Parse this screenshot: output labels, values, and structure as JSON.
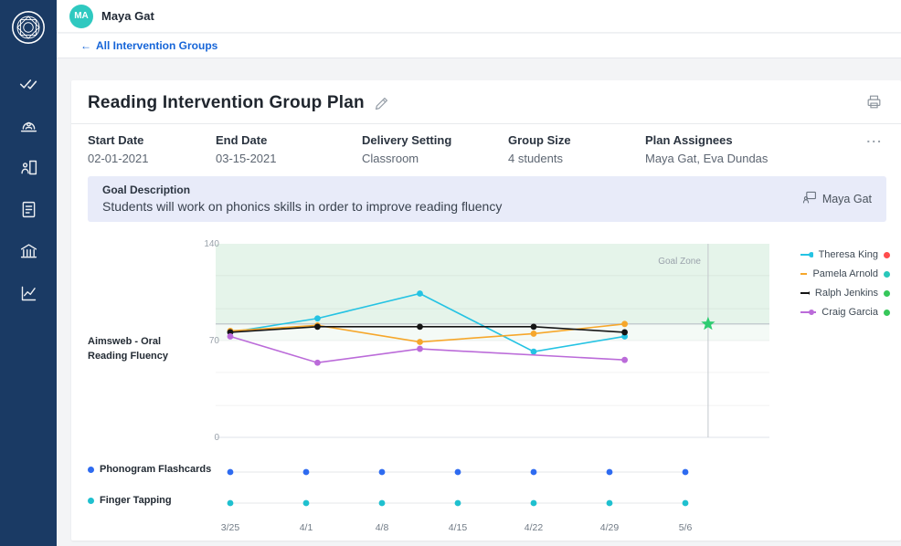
{
  "header": {
    "avatar_initials": "MA",
    "user_name": "Maya Gat",
    "back_arrow": "←",
    "back_label": "All Intervention Groups"
  },
  "plan": {
    "title": "Reading Intervention Group Plan",
    "overflow_label": "...",
    "fields": [
      {
        "label": "Start Date",
        "value": "02-01-2021"
      },
      {
        "label": "End Date",
        "value": "03-15-2021"
      },
      {
        "label": "Delivery Setting",
        "value": "Classroom"
      },
      {
        "label": "Group Size",
        "value": "4 students"
      },
      {
        "label": "Plan Assignees",
        "value": "Maya Gat, Eva Dundas"
      }
    ],
    "goal": {
      "label": "Goal Description",
      "text": "Students will work on phonics skills in order to improve reading fluency",
      "assignee": "Maya Gat"
    }
  },
  "chart_data": {
    "type": "line",
    "ylabel": "Aimsweb - Oral Reading Fluency",
    "ylim": [
      0,
      140
    ],
    "yticks": [
      140,
      70,
      0
    ],
    "gridlines": [
      23,
      47,
      70,
      93,
      117
    ],
    "x_labels": [
      "3/25",
      "4/1",
      "4/8",
      "4/15",
      "4/22",
      "4/29",
      "5/6"
    ],
    "goal_zone": {
      "label": "Goal Zone",
      "from": 82,
      "to": 140,
      "fade_from": 70,
      "color": "#e5f4ea",
      "fade_color": "#f4faf6"
    },
    "goal_line": {
      "value": 82,
      "color": "#b9bfc7"
    },
    "goal_date_line": {
      "x": 6.3,
      "color": "#c3c7cd"
    },
    "goal_marker": {
      "x": 6.3,
      "value": 82,
      "color": "#2ecc71"
    },
    "series": [
      {
        "name": "Theresa King",
        "color": "#25c3e3",
        "status_color": "#ff4d4d",
        "points": [
          [
            0,
            76
          ],
          [
            1.15,
            86
          ],
          [
            2.5,
            104
          ],
          [
            4,
            62
          ],
          [
            5.2,
            73
          ]
        ]
      },
      {
        "name": "Pamela Arnold",
        "color": "#f6a72b",
        "status_color": "#29c7ba",
        "points": [
          [
            0,
            77
          ],
          [
            1.15,
            81
          ],
          [
            2.5,
            69
          ],
          [
            4,
            75
          ],
          [
            5.2,
            82
          ]
        ]
      },
      {
        "name": "Ralph Jenkins",
        "color": "#151515",
        "status_color": "#36c75a",
        "points": [
          [
            0,
            76
          ],
          [
            1.15,
            80
          ],
          [
            2.5,
            80
          ],
          [
            4,
            80
          ],
          [
            5.2,
            76
          ]
        ]
      },
      {
        "name": "Craig Garcia",
        "color": "#bb6bd9",
        "status_color": "#36c75a",
        "points": [
          [
            0,
            73
          ],
          [
            1.15,
            54
          ],
          [
            2.5,
            64
          ],
          [
            5.2,
            56
          ]
        ]
      }
    ],
    "activities": [
      {
        "name": "Phonogram Flashcards",
        "color": "#2e6bf0",
        "x": [
          0,
          1,
          2,
          3,
          4,
          5,
          6
        ]
      },
      {
        "name": "Finger Tapping",
        "color": "#1fc0cf",
        "x": [
          0,
          1,
          2,
          3,
          4,
          5,
          6
        ]
      }
    ]
  }
}
